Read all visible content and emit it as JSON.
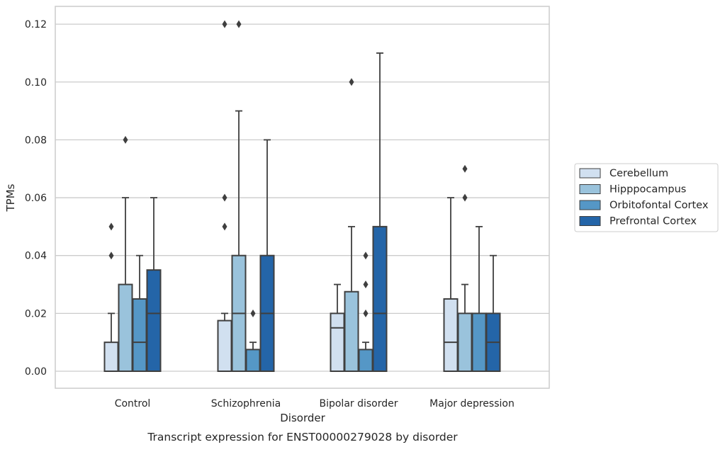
{
  "chart_data": {
    "type": "box",
    "title": "",
    "caption": "Transcript expression for ENST00000279028 by disorder",
    "xlabel": "Disorder",
    "ylabel": "TPMs",
    "ylim": [
      -0.006,
      0.1225
    ],
    "yticks": [
      0.0,
      0.02,
      0.04,
      0.06,
      0.08,
      0.1,
      0.12
    ],
    "ytick_labels": [
      "0.00",
      "0.02",
      "0.04",
      "0.06",
      "0.08",
      "0.10",
      "0.12"
    ],
    "grid": "horizontal",
    "legend_position": "right-outside",
    "categories": [
      "Control",
      "Schizophrenia",
      "Bipolar disorder",
      "Major depression"
    ],
    "series": [
      {
        "name": "Cerebellum",
        "color": "#d1e0f0",
        "boxes": [
          {
            "min": 0.0,
            "q1": 0.0,
            "median": 0.0,
            "q3": 0.01,
            "max": 0.02,
            "outliers": [
              0.04,
              0.05
            ]
          },
          {
            "min": 0.0,
            "q1": 0.0,
            "median": 0.0,
            "q3": 0.0175,
            "max": 0.02,
            "outliers": [
              0.05,
              0.06,
              0.12
            ]
          },
          {
            "min": 0.0,
            "q1": 0.0,
            "median": 0.015,
            "q3": 0.02,
            "max": 0.03,
            "outliers": []
          },
          {
            "min": 0.0,
            "q1": 0.0,
            "median": 0.01,
            "q3": 0.025,
            "max": 0.06,
            "outliers": []
          }
        ]
      },
      {
        "name": "Hipppocampus",
        "color": "#9ac3dc",
        "boxes": [
          {
            "min": 0.0,
            "q1": 0.0,
            "median": 0.0,
            "q3": 0.03,
            "max": 0.06,
            "outliers": [
              0.08
            ]
          },
          {
            "min": 0.0,
            "q1": 0.0,
            "median": 0.02,
            "q3": 0.04,
            "max": 0.09,
            "outliers": [
              0.12
            ]
          },
          {
            "min": 0.0,
            "q1": 0.0,
            "median": 0.0,
            "q3": 0.0275,
            "max": 0.05,
            "outliers": [
              0.1
            ]
          },
          {
            "min": 0.0,
            "q1": 0.0,
            "median": 0.0,
            "q3": 0.02,
            "max": 0.03,
            "outliers": [
              0.06,
              0.07
            ]
          }
        ]
      },
      {
        "name": "Orbitofontal Cortex",
        "color": "#5597c6",
        "boxes": [
          {
            "min": 0.0,
            "q1": 0.0,
            "median": 0.01,
            "q3": 0.025,
            "max": 0.04,
            "outliers": []
          },
          {
            "min": 0.0,
            "q1": 0.0,
            "median": 0.0,
            "q3": 0.0075,
            "max": 0.01,
            "outliers": [
              0.02
            ]
          },
          {
            "min": 0.0,
            "q1": 0.0,
            "median": 0.0,
            "q3": 0.0075,
            "max": 0.01,
            "outliers": [
              0.02,
              0.03,
              0.04
            ]
          },
          {
            "min": 0.0,
            "q1": 0.0,
            "median": 0.0,
            "q3": 0.02,
            "max": 0.05,
            "outliers": []
          }
        ]
      },
      {
        "name": "Prefrontal Cortex",
        "color": "#2465a8",
        "boxes": [
          {
            "min": 0.0,
            "q1": 0.0,
            "median": 0.02,
            "q3": 0.035,
            "max": 0.06,
            "outliers": []
          },
          {
            "min": 0.0,
            "q1": 0.0,
            "median": 0.02,
            "q3": 0.04,
            "max": 0.08,
            "outliers": []
          },
          {
            "min": 0.0,
            "q1": 0.0,
            "median": 0.02,
            "q3": 0.05,
            "max": 0.11,
            "outliers": []
          },
          {
            "min": 0.0,
            "q1": 0.0,
            "median": 0.01,
            "q3": 0.02,
            "max": 0.04,
            "outliers": []
          }
        ]
      }
    ]
  }
}
